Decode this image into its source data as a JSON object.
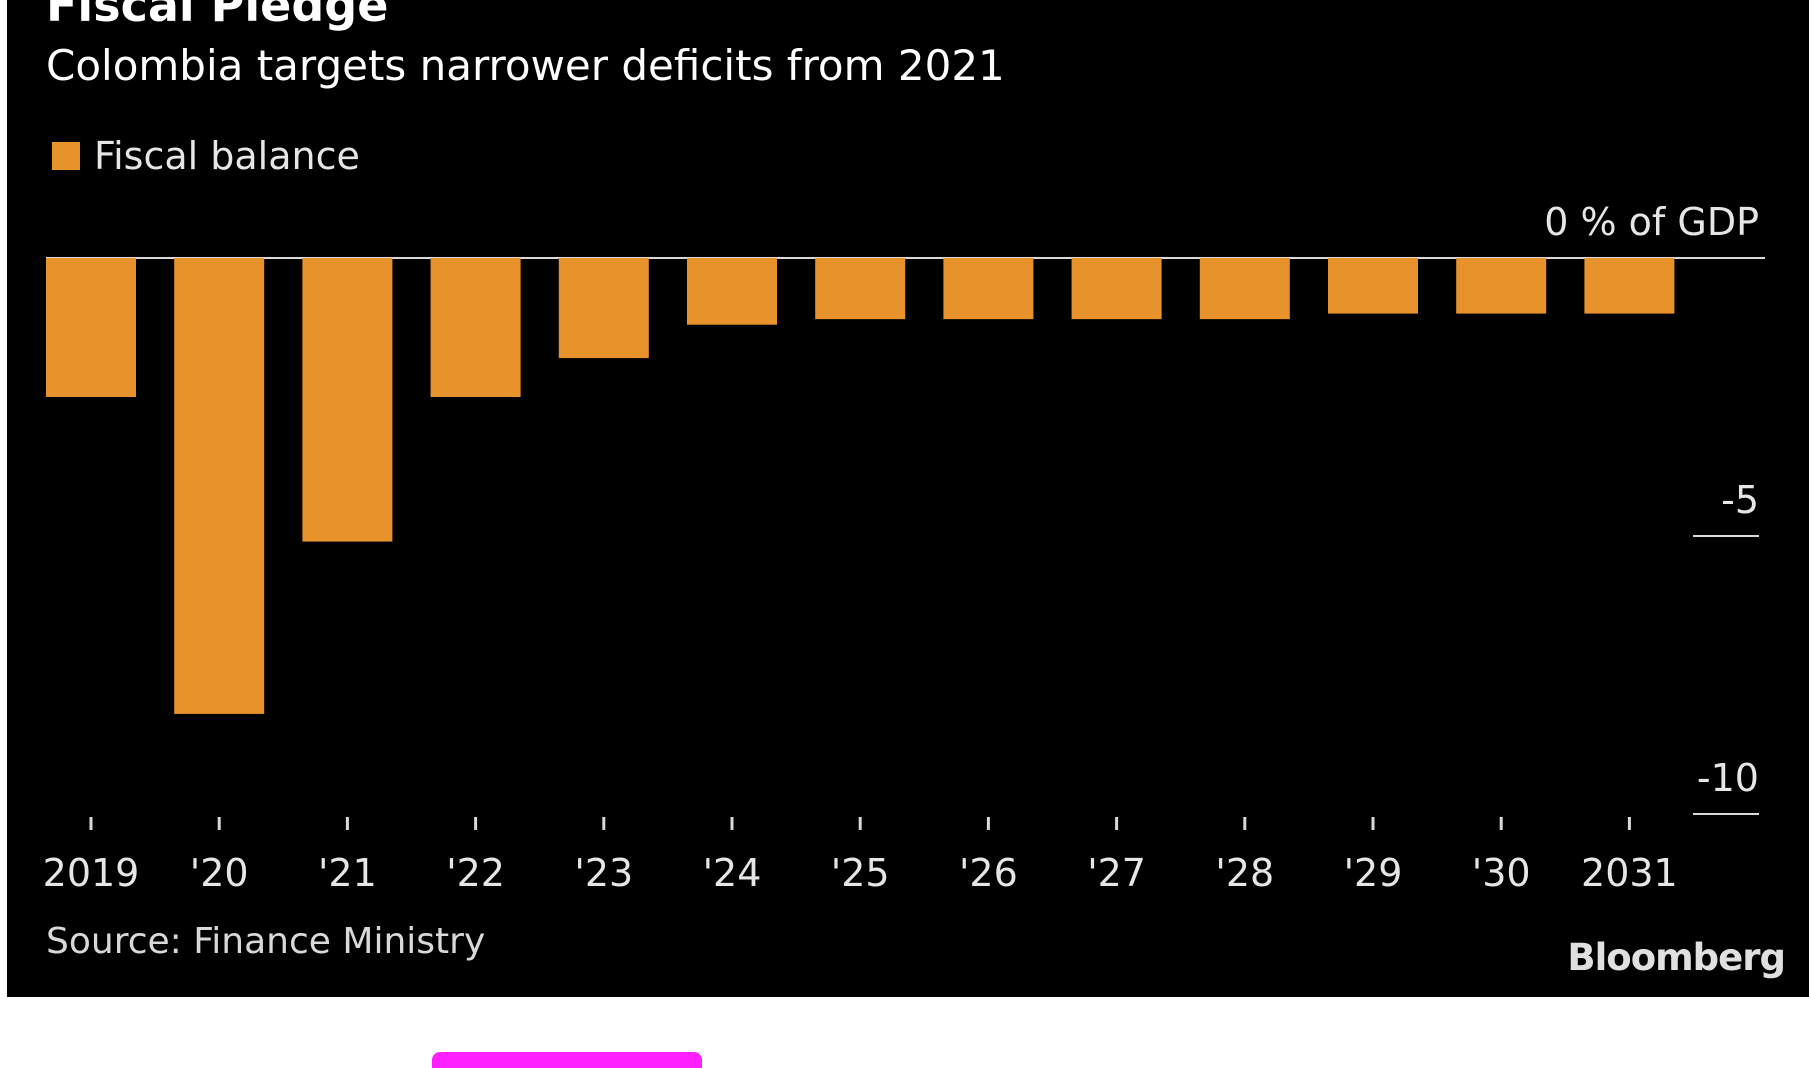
{
  "header": {
    "title": "Fiscal Pledge",
    "subtitle": "Colombia targets narrower deficits from 2021"
  },
  "legend": {
    "label": "Fiscal balance"
  },
  "source": "Source: Finance Ministry",
  "brand": "Bloomberg",
  "colors": {
    "background": "#000000",
    "bar": "#e8922c",
    "axis": "#d9d9d9",
    "accent_stripe": "#ff1fff"
  },
  "chart_data": {
    "type": "bar",
    "title": "Fiscal Pledge",
    "subtitle": "Colombia targets narrower deficits from 2021",
    "categories": [
      "2019",
      "'20",
      "'21",
      "'22",
      "'23",
      "'24",
      "'25",
      "'26",
      "'27",
      "'28",
      "'29",
      "'30",
      "2031"
    ],
    "series": [
      {
        "name": "Fiscal balance",
        "values": [
          -2.5,
          -8.2,
          -5.1,
          -2.5,
          -1.8,
          -1.2,
          -1.1,
          -1.1,
          -1.1,
          -1.1,
          -1.0,
          -1.0,
          -1.0
        ]
      }
    ],
    "ylabel": "% of GDP",
    "yticks": [
      0,
      -5,
      -10
    ],
    "ytick_labels": [
      "0 % of GDP",
      "-5",
      "-10"
    ],
    "ylim": [
      -10,
      0
    ],
    "grid": false,
    "legend_position": "top-left",
    "y_axis_side": "right"
  }
}
